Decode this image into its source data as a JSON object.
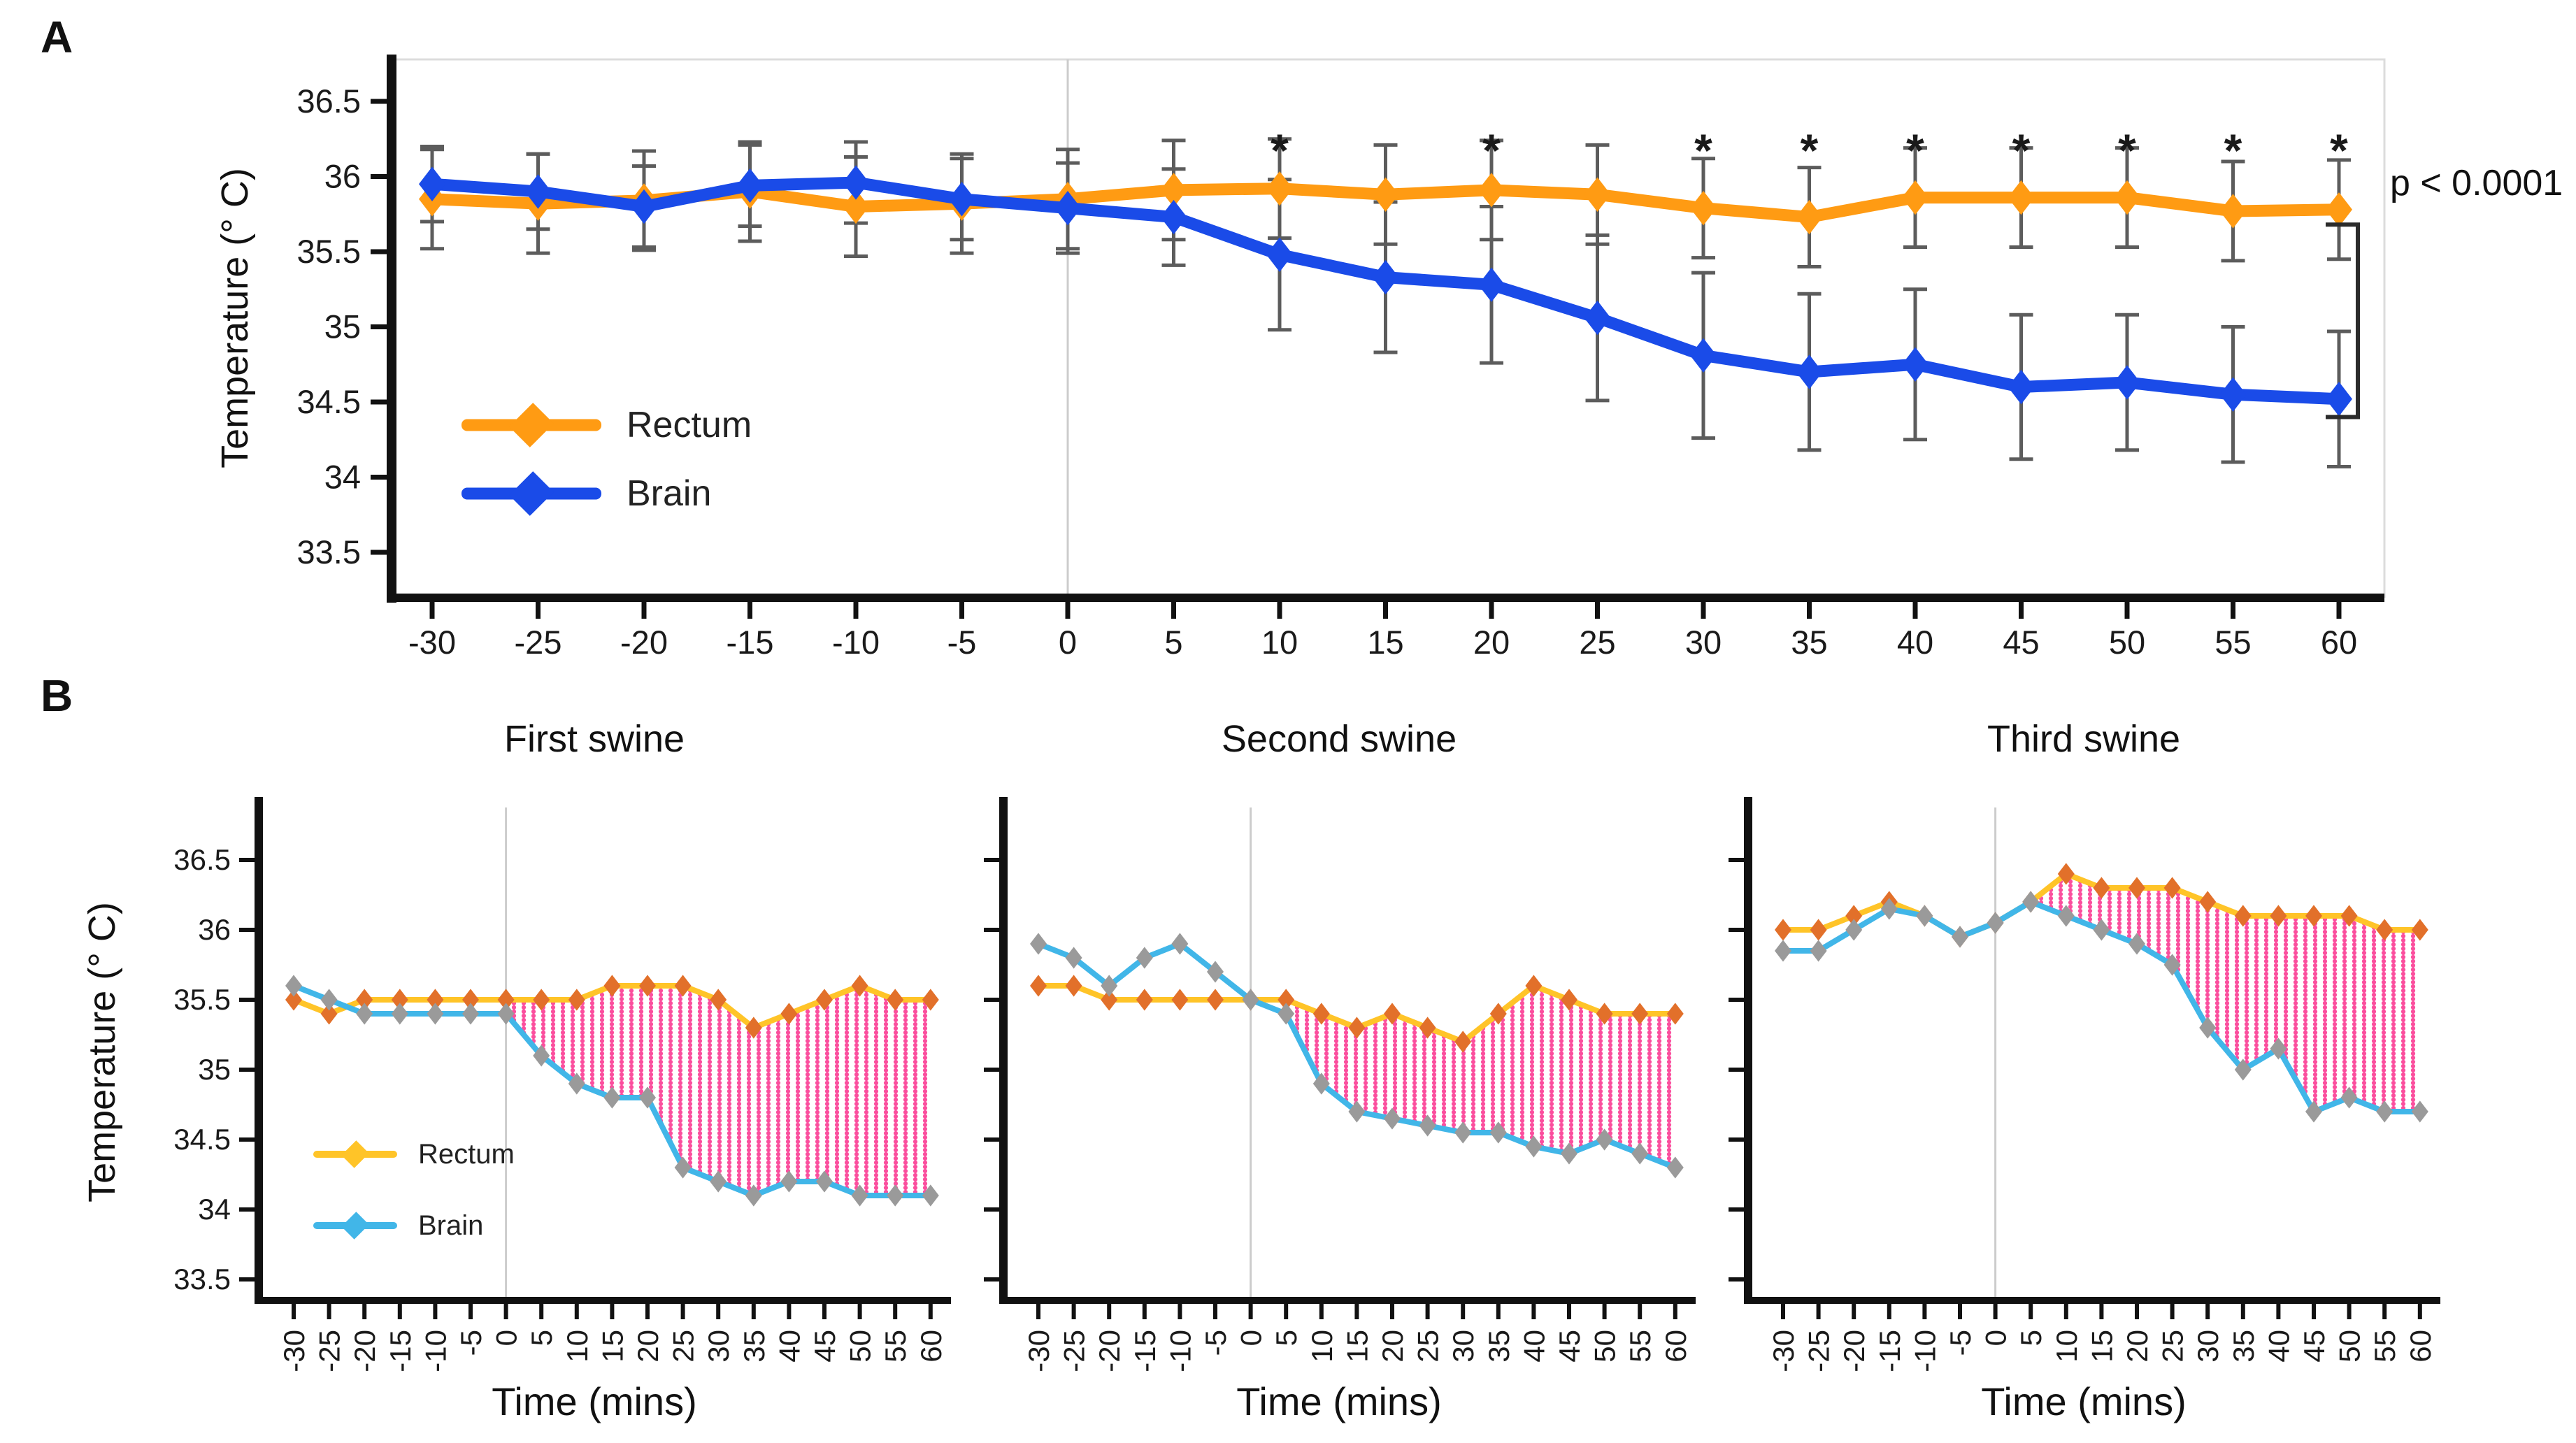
{
  "figure": {
    "panel_a_label": "A",
    "panel_b_label": "B",
    "temp_axis_label": "Temperature (°  C)",
    "time_axis_label": "Time (mins)",
    "p_value_annotation": "p < 0.0001",
    "sig_symbol": "*",
    "colors": {
      "rectum_a": "#FF9B13",
      "brain_a": "#1A4BE8",
      "rectum_b_line": "#FFC428",
      "rectum_b_marker": "#E2702A",
      "brain_b_line": "#41B6E8",
      "brain_b_marker": "#9A9A9A",
      "fill_dots": "#FB4F9E",
      "error_bar": "#5C5C5C",
      "zero_line": "#CCCCCC",
      "axis": "#111111",
      "frame": "#DCDCDC"
    },
    "legend_a": [
      {
        "label": "Rectum"
      },
      {
        "label": "Brain"
      }
    ],
    "legend_b": [
      {
        "label": "Rectum"
      },
      {
        "label": "Brain"
      }
    ]
  },
  "chart_data": [
    {
      "id": "panel_a_mean",
      "type": "line",
      "title": "",
      "xlabel": "",
      "ylabel": "Temperature (°  C)",
      "x": [
        -30,
        -25,
        -20,
        -15,
        -10,
        -5,
        0,
        5,
        10,
        15,
        20,
        25,
        30,
        35,
        40,
        45,
        50,
        55,
        60
      ],
      "ylim": [
        33.5,
        36.5
      ],
      "yticks": [
        36.5,
        36,
        35.5,
        35,
        34.5,
        34,
        33.5
      ],
      "grid": "zero-line-only",
      "legend_position": "inside-lower-left",
      "series": [
        {
          "name": "Rectum",
          "values": [
            35.85,
            35.82,
            35.84,
            35.9,
            35.8,
            35.82,
            35.85,
            35.91,
            35.92,
            35.88,
            35.91,
            35.88,
            35.79,
            35.73,
            35.86,
            35.86,
            35.86,
            35.77,
            35.78
          ],
          "err": [
            0.33,
            0.33,
            0.33,
            0.33,
            0.33,
            0.33,
            0.33,
            0.33,
            0.33,
            0.33,
            0.33,
            0.33,
            0.33,
            0.33,
            0.33,
            0.33,
            0.33,
            0.33,
            0.33
          ]
        },
        {
          "name": "Brain",
          "values": [
            35.95,
            35.9,
            35.8,
            35.94,
            35.96,
            35.85,
            35.79,
            35.73,
            35.48,
            35.33,
            35.28,
            35.06,
            34.81,
            34.7,
            34.75,
            34.6,
            34.63,
            34.55,
            34.52
          ],
          "err": [
            0.25,
            0.25,
            0.27,
            0.27,
            0.27,
            0.27,
            0.3,
            0.32,
            0.5,
            0.5,
            0.52,
            0.55,
            0.55,
            0.52,
            0.5,
            0.48,
            0.45,
            0.45,
            0.45
          ]
        }
      ],
      "significant_times": [
        10,
        20,
        30,
        35,
        40,
        45,
        50,
        55,
        60
      ],
      "annotation": "p < 0.0001"
    },
    {
      "id": "first_swine",
      "type": "line",
      "title": "First swine",
      "xlabel": "Time (mins)",
      "ylabel": "Temperature (°  C)",
      "x": [
        -30,
        -25,
        -20,
        -15,
        -10,
        -5,
        0,
        5,
        10,
        15,
        20,
        25,
        30,
        35,
        40,
        45,
        50,
        55,
        60
      ],
      "ylim": [
        33.5,
        36.5
      ],
      "yticks": [
        36.5,
        36,
        35.5,
        35,
        34.5,
        34,
        33.5
      ],
      "fill_between_from": 0,
      "series": [
        {
          "name": "Rectum",
          "values": [
            35.5,
            35.4,
            35.5,
            35.5,
            35.5,
            35.5,
            35.5,
            35.5,
            35.5,
            35.6,
            35.6,
            35.6,
            35.5,
            35.3,
            35.4,
            35.5,
            35.6,
            35.5,
            35.5
          ]
        },
        {
          "name": "Brain",
          "values": [
            35.6,
            35.5,
            35.4,
            35.4,
            35.4,
            35.4,
            35.4,
            35.1,
            34.9,
            34.8,
            34.8,
            34.3,
            34.2,
            34.1,
            34.2,
            34.2,
            34.1,
            34.1,
            34.1
          ]
        }
      ]
    },
    {
      "id": "second_swine",
      "type": "line",
      "title": "Second swine",
      "xlabel": "Time (mins)",
      "ylabel": "",
      "x": [
        -30,
        -25,
        -20,
        -15,
        -10,
        -5,
        0,
        5,
        10,
        15,
        20,
        25,
        30,
        35,
        40,
        45,
        50,
        55,
        60
      ],
      "ylim": [
        33.5,
        36.5
      ],
      "yticks": [
        36.5,
        36,
        35.5,
        35,
        34.5,
        34,
        33.5
      ],
      "fill_between_from": 5,
      "series": [
        {
          "name": "Rectum",
          "values": [
            35.6,
            35.6,
            35.5,
            35.5,
            35.5,
            35.5,
            35.5,
            35.5,
            35.4,
            35.3,
            35.4,
            35.3,
            35.2,
            35.4,
            35.6,
            35.5,
            35.4,
            35.4,
            35.4
          ]
        },
        {
          "name": "Brain",
          "values": [
            35.9,
            35.8,
            35.6,
            35.8,
            35.9,
            35.7,
            35.5,
            35.4,
            34.9,
            34.7,
            34.65,
            34.6,
            34.55,
            34.55,
            34.45,
            34.4,
            34.5,
            34.4,
            34.3
          ]
        }
      ]
    },
    {
      "id": "third_swine",
      "type": "line",
      "title": "Third swine",
      "xlabel": "Time (mins)",
      "ylabel": "",
      "x": [
        -30,
        -25,
        -20,
        -15,
        -10,
        -5,
        0,
        5,
        10,
        15,
        20,
        25,
        30,
        35,
        40,
        45,
        50,
        55,
        60
      ],
      "ylim": [
        33.5,
        36.5
      ],
      "yticks": [
        36.5,
        36,
        35.5,
        35,
        34.5,
        34,
        33.5
      ],
      "fill_between_from": 5,
      "series": [
        {
          "name": "Rectum",
          "values": [
            36.0,
            36.0,
            36.1,
            36.2,
            36.1,
            35.95,
            36.05,
            36.2,
            36.4,
            36.3,
            36.3,
            36.3,
            36.2,
            36.1,
            36.1,
            36.1,
            36.1,
            36.0,
            36.0
          ]
        },
        {
          "name": "Brain",
          "values": [
            35.85,
            35.85,
            36.0,
            36.15,
            36.1,
            35.95,
            36.05,
            36.2,
            36.1,
            36.0,
            35.9,
            35.75,
            35.3,
            35.0,
            35.15,
            34.7,
            34.8,
            34.7,
            34.7
          ]
        }
      ]
    }
  ]
}
